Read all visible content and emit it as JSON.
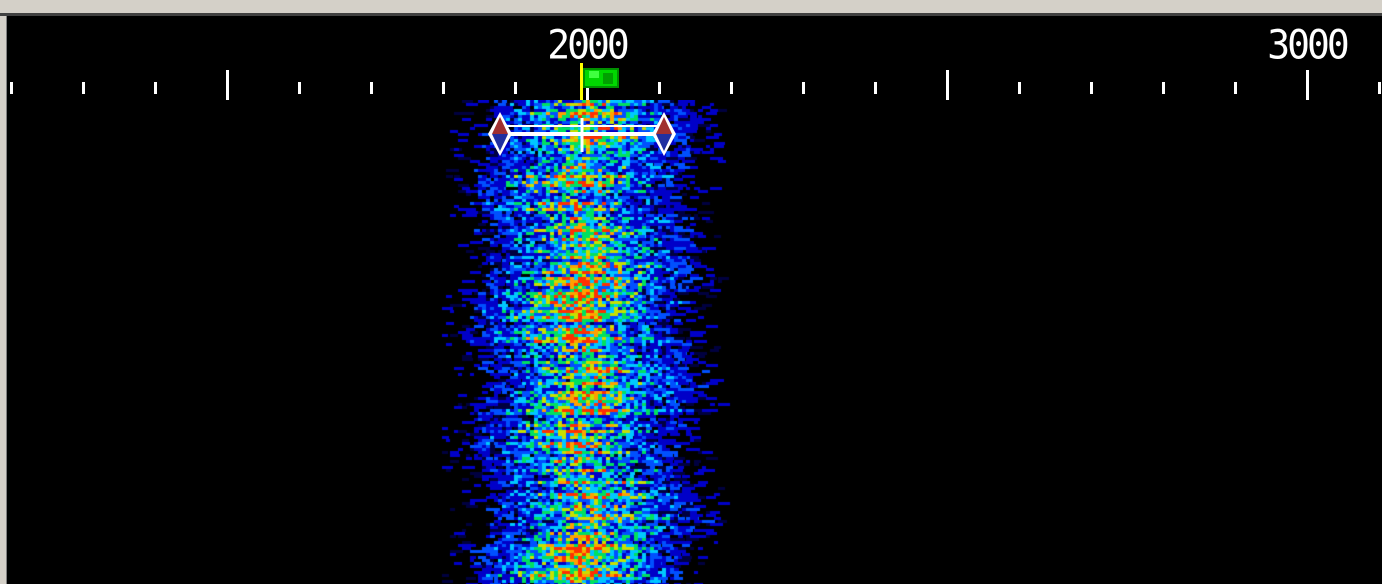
{
  "scale": {
    "labels": [
      "2000",
      "3000"
    ]
  },
  "colors": {
    "background": "#000000",
    "frame": "#d4d0c8",
    "cursor": "#ffff00",
    "flag": "#00c800",
    "marker_top": "#a03030",
    "marker_bottom": "#2030a0",
    "scale_text": "#ffffff"
  },
  "icons": {
    "flag": "green-flag-icon",
    "left_marker": "diamond-marker-icon",
    "right_marker": "diamond-marker-icon"
  }
}
